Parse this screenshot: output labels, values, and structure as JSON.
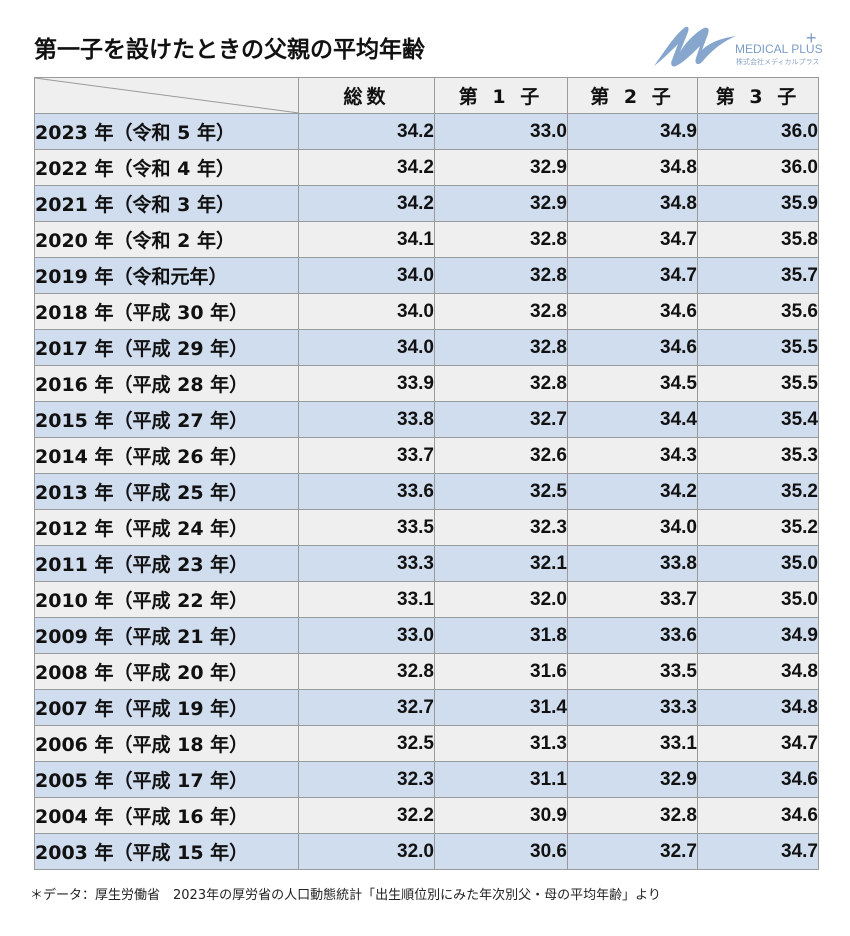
{
  "title": "第一子を設けたときの父親の平均年齢",
  "logo": {
    "brand": "MEDICAL PLUS",
    "plus": "+",
    "subtitle": "株式会社メディカルプラス",
    "color": "#7a9cc8"
  },
  "table": {
    "columns": [
      "総数",
      "第 1 子",
      "第 2 子",
      "第 3 子"
    ],
    "rows": [
      {
        "label": "2023 年（令和 5 年）",
        "values": [
          "34.2",
          "33.0",
          "34.9",
          "36.0"
        ]
      },
      {
        "label": "2022 年（令和 4 年）",
        "values": [
          "34.2",
          "32.9",
          "34.8",
          "36.0"
        ]
      },
      {
        "label": "2021 年（令和 3 年）",
        "values": [
          "34.2",
          "32.9",
          "34.8",
          "35.9"
        ]
      },
      {
        "label": "2020 年（令和 2 年）",
        "values": [
          "34.1",
          "32.8",
          "34.7",
          "35.8"
        ]
      },
      {
        "label": "2019 年（令和元年）",
        "values": [
          "34.0",
          "32.8",
          "34.7",
          "35.7"
        ]
      },
      {
        "label": "2018 年（平成 30 年）",
        "values": [
          "34.0",
          "32.8",
          "34.6",
          "35.6"
        ]
      },
      {
        "label": "2017 年（平成 29 年）",
        "values": [
          "34.0",
          "32.8",
          "34.6",
          "35.5"
        ]
      },
      {
        "label": "2016 年（平成 28 年）",
        "values": [
          "33.9",
          "32.8",
          "34.5",
          "35.5"
        ]
      },
      {
        "label": "2015 年（平成 27 年）",
        "values": [
          "33.8",
          "32.7",
          "34.4",
          "35.4"
        ]
      },
      {
        "label": "2014 年（平成 26 年）",
        "values": [
          "33.7",
          "32.6",
          "34.3",
          "35.3"
        ]
      },
      {
        "label": "2013 年（平成 25 年）",
        "values": [
          "33.6",
          "32.5",
          "34.2",
          "35.2"
        ]
      },
      {
        "label": "2012 年（平成 24 年）",
        "values": [
          "33.5",
          "32.3",
          "34.0",
          "35.2"
        ]
      },
      {
        "label": "2011 年（平成 23 年）",
        "values": [
          "33.3",
          "32.1",
          "33.8",
          "35.0"
        ]
      },
      {
        "label": "2010 年（平成 22 年）",
        "values": [
          "33.1",
          "32.0",
          "33.7",
          "35.0"
        ]
      },
      {
        "label": "2009 年（平成 21 年）",
        "values": [
          "33.0",
          "31.8",
          "33.6",
          "34.9"
        ]
      },
      {
        "label": "2008 年（平成 20 年）",
        "values": [
          "32.8",
          "31.6",
          "33.5",
          "34.8"
        ]
      },
      {
        "label": "2007 年（平成 19 年）",
        "values": [
          "32.7",
          "31.4",
          "33.3",
          "34.8"
        ]
      },
      {
        "label": "2006 年（平成 18 年）",
        "values": [
          "32.5",
          "31.3",
          "33.1",
          "34.7"
        ]
      },
      {
        "label": "2005 年（平成 17 年）",
        "values": [
          "32.3",
          "31.1",
          "32.9",
          "34.6"
        ]
      },
      {
        "label": "2004 年（平成 16 年）",
        "values": [
          "32.2",
          "30.9",
          "32.8",
          "34.6"
        ]
      },
      {
        "label": "2003 年（平成 15 年）",
        "values": [
          "32.0",
          "30.6",
          "32.7",
          "34.7"
        ]
      }
    ]
  },
  "note": "＊データ：厚生労働省　2023年の厚労省の人口動態統計「出生順位別にみた年次別父・母の平均年齢」より",
  "colors": {
    "row_alt": "#d0ddee",
    "row_plain": "#efefef",
    "border": "#9a9a9a"
  },
  "chart_data": {
    "type": "table",
    "title": "第一子を設けたときの父親の平均年齢",
    "columns": [
      "総数",
      "第1子",
      "第2子",
      "第3子"
    ],
    "categories": [
      "2023",
      "2022",
      "2021",
      "2020",
      "2019",
      "2018",
      "2017",
      "2016",
      "2015",
      "2014",
      "2013",
      "2012",
      "2011",
      "2010",
      "2009",
      "2008",
      "2007",
      "2006",
      "2005",
      "2004",
      "2003"
    ],
    "series": [
      {
        "name": "総数",
        "values": [
          34.2,
          34.2,
          34.2,
          34.1,
          34.0,
          34.0,
          34.0,
          33.9,
          33.8,
          33.7,
          33.6,
          33.5,
          33.3,
          33.1,
          33.0,
          32.8,
          32.7,
          32.5,
          32.3,
          32.2,
          32.0
        ]
      },
      {
        "name": "第1子",
        "values": [
          33.0,
          32.9,
          32.9,
          32.8,
          32.8,
          32.8,
          32.8,
          32.8,
          32.7,
          32.6,
          32.5,
          32.3,
          32.1,
          32.0,
          31.8,
          31.6,
          31.4,
          31.3,
          31.1,
          30.9,
          30.6
        ]
      },
      {
        "name": "第2子",
        "values": [
          34.9,
          34.8,
          34.8,
          34.7,
          34.7,
          34.6,
          34.6,
          34.5,
          34.4,
          34.3,
          34.2,
          34.0,
          33.8,
          33.7,
          33.6,
          33.5,
          33.3,
          33.1,
          32.9,
          32.8,
          32.7
        ]
      },
      {
        "name": "第3子",
        "values": [
          36.0,
          36.0,
          35.9,
          35.8,
          35.7,
          35.6,
          35.5,
          35.5,
          35.4,
          35.3,
          35.2,
          35.2,
          35.0,
          35.0,
          34.9,
          34.8,
          34.8,
          34.7,
          34.6,
          34.6,
          34.7
        ]
      }
    ],
    "source": "厚生労働省 人口動態統計「出生順位別にみた年次別父・母の平均年齢」"
  }
}
